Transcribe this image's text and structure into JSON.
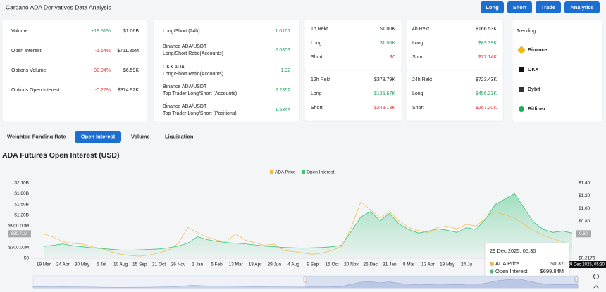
{
  "header": {
    "title": "Cardano ADA Derivatives Data Analysis",
    "buttons": [
      "Long",
      "Short",
      "Trade",
      "Analytics"
    ]
  },
  "summary": {
    "rows": [
      {
        "label": "Volume",
        "change": "+18.51%",
        "value": "$1.06B"
      },
      {
        "label": "Open Interest",
        "change": "-1.64%",
        "value": "$711.85M"
      },
      {
        "label": "Options Volume",
        "change": "-92.94%",
        "value": "$6.59K"
      },
      {
        "label": "Options Open Interest",
        "change": "-0.27%",
        "value": "$374.92K"
      }
    ]
  },
  "ratios": {
    "rows": [
      {
        "label": "Long/Short (24h)",
        "value": "1.0161"
      },
      {
        "label": "Binance ADA/USDT",
        "sub": "Long/Short Ratio(Accounts)",
        "value": "2.0303"
      },
      {
        "label": "OKX ADA",
        "sub": "Long/Short Ratio(Accounts)",
        "value": "1.92"
      },
      {
        "label": "Binance ADA/USDT",
        "sub": "Top Trader Long/Short (Accounts)",
        "value": "2.2362"
      },
      {
        "label": "Binance ADA/USDT",
        "sub": "Top Trader Long/Short (Positions)",
        "value": "1.5344"
      }
    ]
  },
  "rekt": {
    "long_label": "Long",
    "short_label": "Short",
    "panels": [
      {
        "title": "1h Rekt",
        "total": "$1.00K",
        "long": "$1.00K",
        "short": "$0"
      },
      {
        "title": "4h Rekt",
        "total": "$166.53K",
        "long": "$89.39K",
        "short": "$77.14K"
      },
      {
        "title": "12h Rekt",
        "total": "$378.79K",
        "long": "$135.67K",
        "short": "$243.13K"
      },
      {
        "title": "24h Rekt",
        "total": "$723.43K",
        "long": "$456.23K",
        "short": "$267.20K"
      }
    ]
  },
  "trending": {
    "title": "Trending",
    "items": [
      "Binance",
      "OKX",
      "Bybit",
      "Bitfinex"
    ]
  },
  "tabs": {
    "items": [
      "Weighted Funding Rate",
      "Open Interest",
      "Volume",
      "Liquidation"
    ],
    "active": 1
  },
  "chart_data": {
    "type": "line",
    "title": "ADA Futures Open Interest (USD)",
    "categories": [
      "19 Mar",
      null,
      "24 Apr",
      null,
      "30 May",
      null,
      "5 Jul",
      null,
      "10 Aug",
      null,
      "15 Sep",
      null,
      "21 Oct",
      null,
      "26 Nov",
      null,
      "1 Jan",
      null,
      "6 Feb",
      null,
      "13 Mar",
      null,
      "18 Apr",
      null,
      "29 Jun",
      null,
      "4 Aug",
      null,
      "9 Sep",
      null,
      "15 Oct",
      null,
      "20 Nov",
      null,
      "26 Dec",
      null,
      "31 Jan",
      null,
      "8 Mar",
      null,
      "13 Apr",
      null,
      "19 May",
      null,
      "24 Ju",
      null,
      null,
      null,
      null,
      null,
      null,
      null,
      null,
      null,
      null,
      null
    ],
    "series": [
      {
        "name": "ADA Price",
        "color": "#f5b94a",
        "axis": "y2",
        "area": false,
        "values": [
          0.6,
          0.55,
          0.48,
          0.45,
          0.44,
          0.4,
          0.37,
          0.32,
          0.28,
          0.26,
          0.25,
          0.27,
          0.3,
          0.35,
          0.45,
          0.7,
          0.62,
          0.55,
          0.5,
          0.48,
          0.6,
          0.5,
          0.46,
          0.42,
          0.44,
          0.34,
          0.32,
          0.3,
          0.28,
          0.3,
          0.34,
          0.4,
          0.7,
          1.1,
          0.98,
          0.85,
          0.95,
          0.8,
          0.7,
          0.65,
          0.62,
          0.7,
          0.72,
          0.68,
          0.75,
          0.72,
          0.85,
          0.95,
          0.9,
          0.85,
          0.75,
          0.65,
          0.58,
          0.52,
          0.48,
          0.4
        ]
      },
      {
        "name": "Open Interest",
        "color": "#3cc47c",
        "area": true,
        "values": [
          330000000,
          360000000,
          400000000,
          350000000,
          320000000,
          290000000,
          270000000,
          250000000,
          230000000,
          225000000,
          235000000,
          245000000,
          260000000,
          290000000,
          340000000,
          420000000,
          600000000,
          520000000,
          470000000,
          440000000,
          420000000,
          400000000,
          370000000,
          340000000,
          320000000,
          300000000,
          290000000,
          280000000,
          290000000,
          300000000,
          320000000,
          360000000,
          750000000,
          1150000000,
          1300000000,
          1050000000,
          1250000000,
          950000000,
          800000000,
          700000000,
          750000000,
          820000000,
          780000000,
          720000000,
          850000000,
          800000000,
          1100000000,
          1500000000,
          1650000000,
          1800000000,
          1400000000,
          1000000000,
          800000000,
          720000000,
          760000000,
          700000000
        ]
      }
    ],
    "ylim": [
      0,
      2100000000
    ],
    "yticks": [
      {
        "value": 0,
        "label": "$0"
      },
      {
        "value": 300000000,
        "label": "$300.00M"
      },
      {
        "value": 900000000,
        "label": "$900.00M"
      },
      {
        "value": 1200000000,
        "label": "$1.20B"
      },
      {
        "value": 1500000000,
        "label": "$1.50B"
      },
      {
        "value": 1800000000,
        "label": "$1.80B"
      },
      {
        "value": 2100000000,
        "label": "$2.10B"
      }
    ],
    "y2lim": [
      0.2176,
      1.4
    ],
    "y2ticks": [
      {
        "value": 0.2176,
        "label": "$0.2176"
      },
      {
        "value": 0.8,
        "label": "$0.80"
      },
      {
        "value": 1,
        "label": "$1.00"
      },
      {
        "value": 1.2,
        "label": "$1.20"
      },
      {
        "value": 1.4,
        "label": "$1.40"
      }
    ],
    "grid": false,
    "legend": "top",
    "crosshair": {
      "value": 680710000,
      "label": "680.71M",
      "y2_label": "0.60"
    },
    "tooltip": {
      "title": "29 Dec 2025, 05:30",
      "values": [
        "$0.37",
        "$699.84M"
      ]
    }
  }
}
